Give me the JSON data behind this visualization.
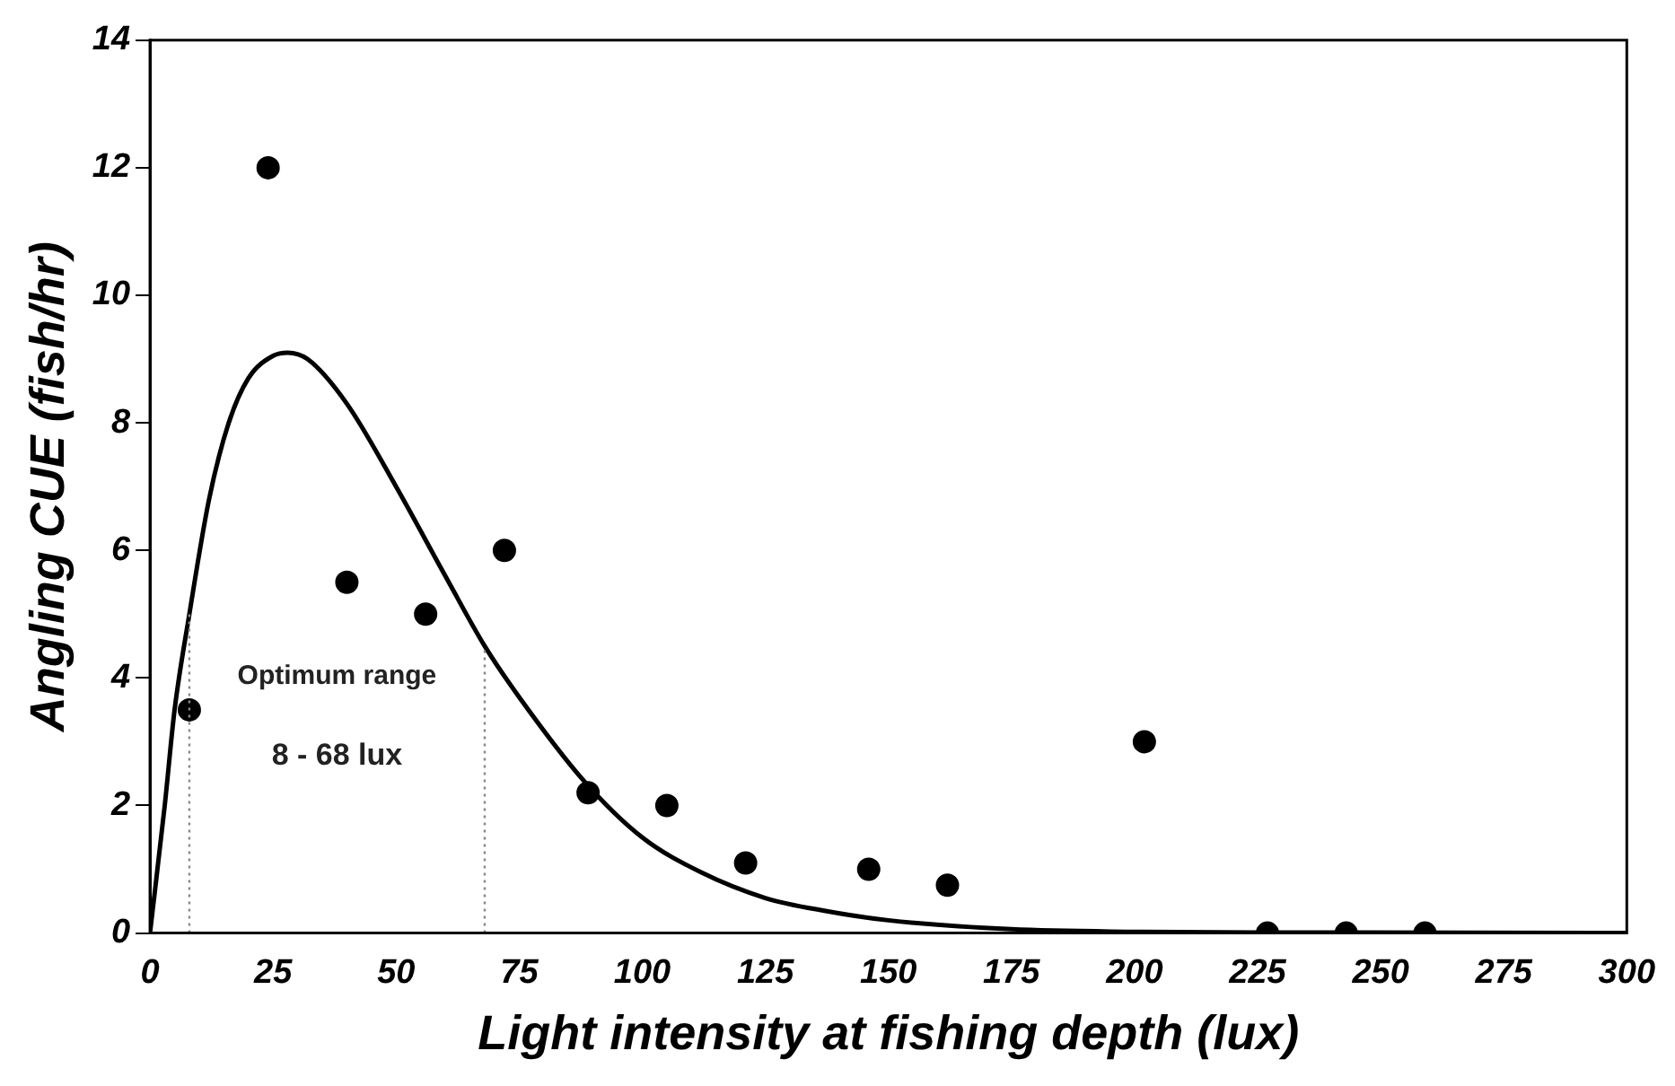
{
  "chart_data": {
    "type": "scatter",
    "xlabel": "Light intensity at fishing depth (lux)",
    "ylabel": "Angling CUE (fish/hr)",
    "xlim": [
      0,
      300
    ],
    "xticks": [
      0,
      25,
      50,
      75,
      100,
      125,
      150,
      175,
      200,
      225,
      250,
      275,
      300
    ],
    "ylim": [
      0,
      14
    ],
    "yticks": [
      0,
      2,
      4,
      6,
      8,
      10,
      12,
      14
    ],
    "grid": false,
    "legend": false,
    "marker": "circle",
    "series": [
      {
        "type": "scatter",
        "color": "#000000",
        "x": [
          8,
          24,
          40,
          56,
          72,
          89,
          105,
          121,
          146,
          162,
          202,
          227,
          243,
          259
        ],
        "values": [
          3.5,
          12,
          5.5,
          5,
          6,
          2.2,
          2,
          1.1,
          1,
          0.75,
          3,
          0,
          0,
          0
        ]
      },
      {
        "type": "line",
        "color": "#000000",
        "marker": "none",
        "line_style": "solid",
        "x": [
          0,
          3,
          5,
          8,
          12,
          16,
          20,
          25,
          28,
          32,
          40,
          50,
          60,
          68,
          75,
          88,
          100,
          112,
          125,
          137,
          150,
          175,
          200,
          225,
          300
        ],
        "values": [
          0,
          2,
          3.5,
          5,
          6.8,
          8,
          8.7,
          9.05,
          9.1,
          9,
          8.3,
          7,
          5.6,
          4.5,
          3.7,
          2.4,
          1.5,
          0.95,
          0.55,
          0.35,
          0.2,
          0.06,
          0.02,
          0.01,
          0
        ]
      }
    ],
    "ref_lines": [
      {
        "axis": "x",
        "value": 8,
        "color": "#888888",
        "line_style": "dotted"
      },
      {
        "axis": "x",
        "value": 68,
        "color": "#888888",
        "line_style": "dotted"
      }
    ],
    "annotations": [
      "Optimum range",
      "8 - 68 lux"
    ]
  }
}
